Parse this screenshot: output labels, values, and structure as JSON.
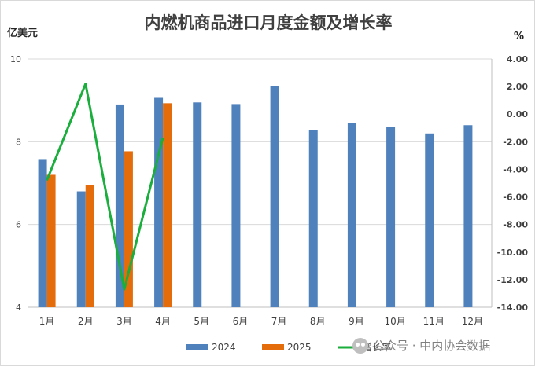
{
  "chart_data": {
    "type": "bar",
    "title": "内燃机商品进口月度金额及增长率",
    "ylabel": "亿美元",
    "y2label": "%",
    "categories": [
      "1月",
      "2月",
      "3月",
      "4月",
      "5月",
      "6月",
      "7月",
      "8月",
      "9月",
      "10月",
      "11月",
      "12月"
    ],
    "ylim": [
      4,
      10
    ],
    "yticks": [
      4,
      6,
      8,
      10
    ],
    "y2lim": [
      -14,
      4
    ],
    "y2ticks": [
      "4.00",
      "2.00",
      "0.00",
      "-2.00",
      "-4.00",
      "-6.00",
      "-8.00",
      "-10.00",
      "-12.00",
      "-14.00"
    ],
    "series": [
      {
        "name": "2024",
        "type": "bar",
        "axis": "left",
        "color": "#4f81bd",
        "values": [
          7.58,
          6.8,
          8.9,
          9.06,
          8.95,
          8.91,
          9.34,
          8.29,
          8.45,
          8.36,
          8.2,
          8.4
        ]
      },
      {
        "name": "2025",
        "type": "bar",
        "axis": "left",
        "color": "#e46c0a",
        "values": [
          7.2,
          6.96,
          7.77,
          8.93,
          null,
          null,
          null,
          null,
          null,
          null,
          null,
          null
        ]
      },
      {
        "name": "增长率",
        "type": "line",
        "axis": "right",
        "color": "#1aae3c",
        "values": [
          -4.8,
          2.2,
          -12.7,
          -1.7,
          null,
          null,
          null,
          null,
          null,
          null,
          null,
          null
        ]
      }
    ],
    "legend_position": "bottom",
    "grid": true
  },
  "watermark": {
    "text": "公众号 · 中内协会数据",
    "icon": "wechat-icon"
  }
}
